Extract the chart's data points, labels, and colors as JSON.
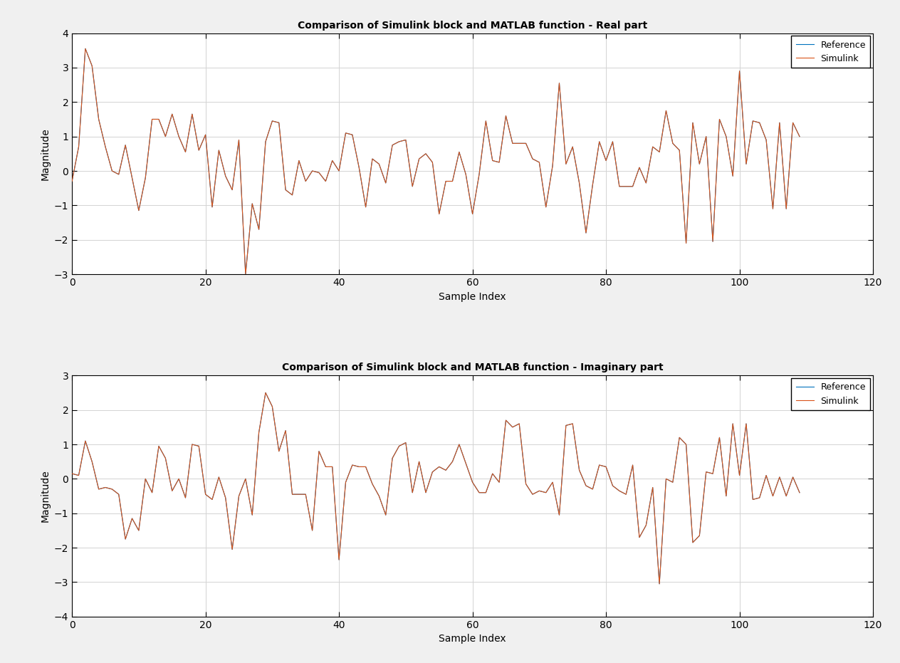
{
  "title_real": "Comparison of Simulink block and MATLAB function - Real part",
  "title_imag": "Comparison of Simulink block and MATLAB function - Imaginary part",
  "xlabel": "Sample Index",
  "ylabel": "Magnitude",
  "legend_ref": "Reference",
  "legend_sim": "Simulink",
  "color_ref": "#0072BD",
  "color_sim": "#D95319",
  "xlim": [
    0,
    120
  ],
  "ylim_real": [
    -3,
    4
  ],
  "ylim_imag": [
    -4,
    3
  ],
  "xticks": [
    0,
    20,
    40,
    60,
    80,
    100,
    120
  ],
  "yticks_real": [
    -3,
    -2,
    -1,
    0,
    1,
    2,
    3,
    4
  ],
  "yticks_imag": [
    -4,
    -3,
    -2,
    -1,
    0,
    1,
    2,
    3
  ],
  "fig_bg": "#F0F0F0",
  "axes_bg": "#FFFFFF",
  "grid_color": "#D3D3D3",
  "real": [
    -0.3,
    0.7,
    3.55,
    3.05,
    1.5,
    0.7,
    0.0,
    -0.1,
    0.75,
    -0.2,
    -1.15,
    -0.2,
    1.5,
    1.5,
    1.0,
    1.65,
    1.0,
    0.55,
    1.65,
    0.6,
    1.05,
    -1.05,
    0.6,
    -0.15,
    -0.55,
    0.9,
    -3.0,
    -0.95,
    -1.7,
    0.85,
    1.45,
    1.4,
    -0.55,
    -0.7,
    0.3,
    -0.3,
    0.0,
    -0.05,
    -0.3,
    0.3,
    0.0,
    1.1,
    1.05,
    0.1,
    -1.05,
    0.35,
    0.2,
    -0.35,
    0.75,
    0.85,
    0.9,
    -0.45,
    0.35,
    0.5,
    0.25,
    -1.25,
    -0.3,
    -0.3,
    0.55,
    -0.1,
    -1.25,
    -0.1,
    1.45,
    0.3,
    0.25,
    1.6,
    0.8,
    0.8,
    0.8,
    0.35,
    0.25,
    -1.05,
    0.15,
    2.55,
    0.2,
    0.7,
    -0.35,
    -1.8,
    -0.4,
    0.85,
    0.3,
    0.85,
    -0.45,
    -0.45,
    -0.45,
    0.1,
    -0.35,
    0.7,
    0.55,
    1.75,
    0.8,
    0.6,
    -2.1,
    1.4,
    0.2,
    1.0,
    -2.05,
    1.5,
    1.0,
    -0.15,
    2.9,
    0.2,
    1.45,
    1.4,
    0.9,
    -1.1,
    1.4,
    -1.1,
    1.4,
    1.0
  ],
  "imag": [
    0.15,
    0.1,
    1.1,
    0.5,
    -0.3,
    -0.25,
    -0.3,
    -0.45,
    -1.75,
    -1.15,
    -1.5,
    0.0,
    -0.4,
    0.95,
    0.6,
    -0.35,
    0.0,
    -0.55,
    1.0,
    0.95,
    -0.45,
    -0.6,
    0.05,
    -0.55,
    -2.05,
    -0.5,
    0.0,
    -1.05,
    1.35,
    2.5,
    2.1,
    0.8,
    1.4,
    -0.45,
    -0.45,
    -0.45,
    -1.5,
    0.8,
    0.35,
    0.35,
    -2.35,
    -0.1,
    0.4,
    0.35,
    0.35,
    -0.15,
    -0.5,
    -1.05,
    0.6,
    0.95,
    1.05,
    -0.4,
    0.5,
    -0.4,
    0.2,
    0.35,
    0.25,
    0.5,
    1.0,
    0.45,
    -0.1,
    -0.4,
    -0.4,
    0.15,
    -0.1,
    1.7,
    1.5,
    1.6,
    -0.15,
    -0.45,
    -0.35,
    -0.4,
    -0.1,
    -1.05,
    1.55,
    1.6,
    0.25,
    -0.2,
    -0.3,
    0.4,
    0.35,
    -0.2,
    -0.35,
    -0.45,
    0.4,
    -1.7,
    -1.35,
    -0.25,
    -3.05,
    0.0,
    -0.1,
    1.2,
    1.0,
    -1.85,
    -1.65,
    0.2,
    0.15,
    1.2,
    -0.5,
    1.6,
    0.1,
    1.6,
    -0.6,
    -0.55,
    0.1,
    -0.5,
    0.05,
    -0.5,
    0.05,
    -0.4
  ],
  "linewidth": 0.8,
  "title_fontsize": 10,
  "label_fontsize": 10,
  "tick_fontsize": 10,
  "legend_fontsize": 9
}
